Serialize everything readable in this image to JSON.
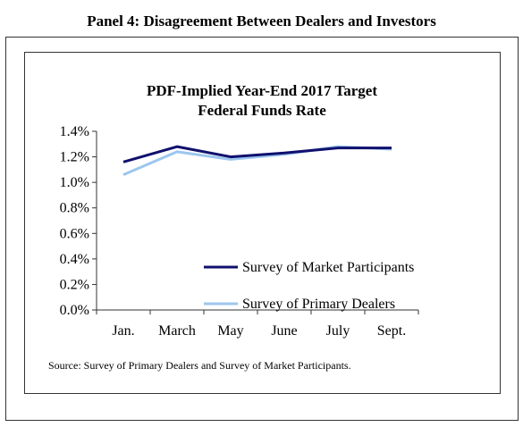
{
  "panel": {
    "title": "Panel 4: Disagreement Between Dealers and Investors"
  },
  "source": "Source:  Survey of Primary Dealers and Survey of Market Participants.",
  "chart_data": {
    "type": "line",
    "title_lines": [
      "PDF-Implied  Year-End  2017 Target",
      "Federal Funds  Rate"
    ],
    "categories": [
      "Jan.",
      "March",
      "May",
      "June",
      "July",
      "Sept."
    ],
    "ylim": [
      0.0,
      1.4
    ],
    "yticks": [
      "0.0%",
      "0.2%",
      "0.4%",
      "0.6%",
      "0.8%",
      "1.0%",
      "1.2%",
      "1.4%"
    ],
    "grid": false,
    "legend_placement": "center",
    "series": [
      {
        "name": "Survey of Market Participants",
        "color": "#10106e",
        "values": [
          1.16,
          1.28,
          1.2,
          1.23,
          1.27,
          1.27
        ]
      },
      {
        "name": "Survey of Primary Dealers",
        "color": "#9cc6ee",
        "values": [
          1.06,
          1.24,
          1.18,
          1.22,
          1.28,
          1.26
        ]
      }
    ]
  }
}
